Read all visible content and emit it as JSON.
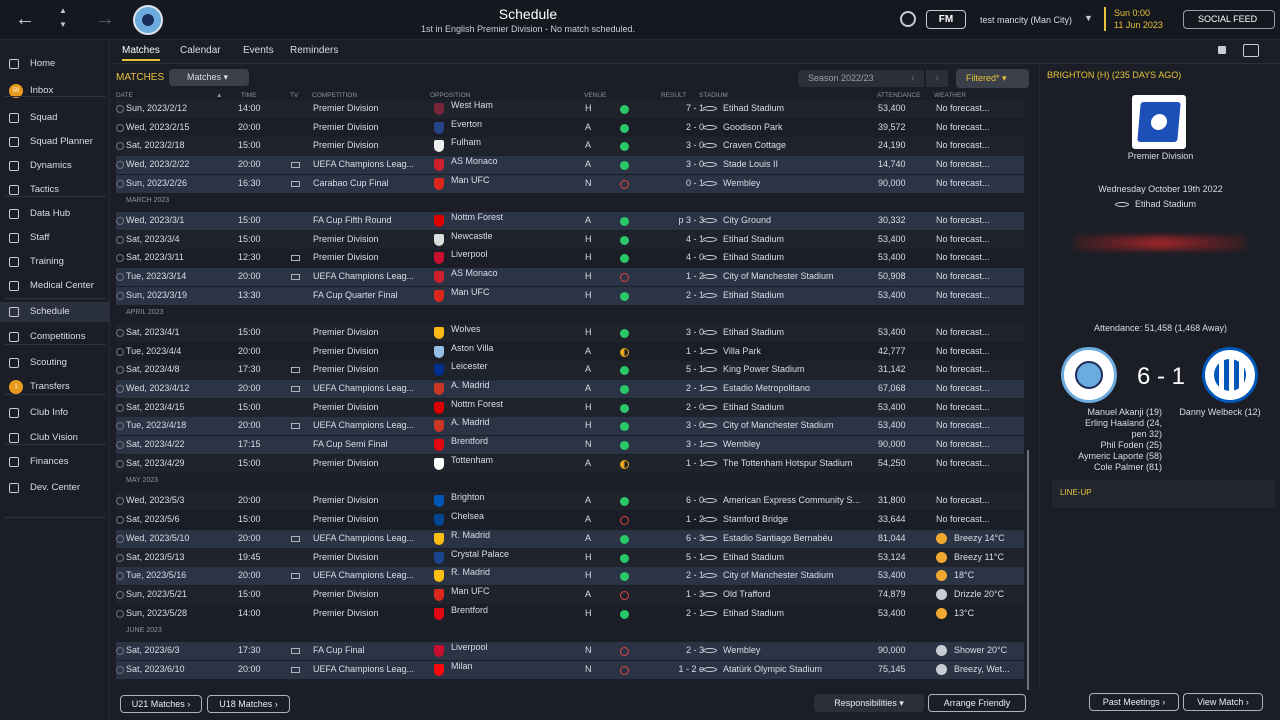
{
  "topbar": {
    "title": "Schedule",
    "subtitle": "1st in English Premier Division - No match scheduled.",
    "fm_label": "FM",
    "manager": "test mancity (Man City)",
    "time": "Sun 0:00",
    "date": "11 Jun 2023",
    "social_feed": "SOCIAL FEED"
  },
  "sidebar": {
    "items": [
      {
        "label": "Home",
        "icon": "home-icon"
      },
      {
        "label": "Inbox",
        "icon": "inbox-icon",
        "badge": "50"
      },
      {
        "label": "Squad",
        "icon": "squad-icon"
      },
      {
        "label": "Squad Planner",
        "icon": "squad-planner-icon"
      },
      {
        "label": "Dynamics",
        "icon": "dynamics-icon"
      },
      {
        "label": "Tactics",
        "icon": "tactics-icon"
      },
      {
        "label": "Data Hub",
        "icon": "data-hub-icon"
      },
      {
        "label": "Staff",
        "icon": "staff-icon"
      },
      {
        "label": "Training",
        "icon": "training-icon"
      },
      {
        "label": "Medical Center",
        "icon": "medical-icon"
      },
      {
        "label": "Schedule",
        "icon": "calendar-icon"
      },
      {
        "label": "Competitions",
        "icon": "trophy-icon"
      },
      {
        "label": "Scouting",
        "icon": "scouting-icon"
      },
      {
        "label": "Transfers",
        "icon": "transfers-icon",
        "badge": "1"
      },
      {
        "label": "Club Info",
        "icon": "club-info-icon"
      },
      {
        "label": "Club Vision",
        "icon": "club-vision-icon"
      },
      {
        "label": "Finances",
        "icon": "finances-icon"
      },
      {
        "label": "Dev. Center",
        "icon": "dev-center-icon"
      }
    ]
  },
  "tabs": [
    "Matches",
    "Calendar",
    "Events",
    "Reminders"
  ],
  "matches_bar": {
    "label": "MATCHES",
    "dropdown": "Matches",
    "season": "Season 2022/23",
    "filter": "Filtered*"
  },
  "columns": [
    "DATE",
    "TIME",
    "TV",
    "COMPETITION",
    "OPPOSITION",
    "VENUE",
    "RESULT",
    "STADIUM",
    "ATTENDANCE",
    "WEATHER"
  ],
  "rows": [
    {
      "type": "match",
      "date": "Sun, 2023/2/12",
      "time": "14:00",
      "tv": false,
      "comp": "Premier Division",
      "opp": "West Ham",
      "badge": "#7a263a",
      "venue": "H",
      "res": "win",
      "result": "7 - 1",
      "stadium": "Etihad Stadium",
      "att": "53,400",
      "wicon": "",
      "weather": "No forecast...",
      "style": "alt"
    },
    {
      "type": "match",
      "date": "Wed, 2023/2/15",
      "time": "20:00",
      "tv": false,
      "comp": "Premier Division",
      "opp": "Everton",
      "badge": "#274488",
      "venue": "A",
      "res": "win",
      "result": "2 - 0",
      "stadium": "Goodison Park",
      "att": "39,572",
      "wicon": "",
      "weather": "No forecast...",
      "style": ""
    },
    {
      "type": "match",
      "date": "Sat, 2023/2/18",
      "time": "15:00",
      "tv": false,
      "comp": "Premier Division",
      "opp": "Fulham",
      "badge": "#f0f0f0",
      "venue": "A",
      "res": "win",
      "result": "3 - 0",
      "stadium": "Craven Cottage",
      "att": "24,190",
      "wicon": "",
      "weather": "No forecast...",
      "style": "alt"
    },
    {
      "type": "match",
      "date": "Wed, 2023/2/22",
      "time": "20:00",
      "tv": true,
      "comp": "UEFA Champions Leag...",
      "opp": "AS Monaco",
      "badge": "#d0202e",
      "venue": "A",
      "res": "win",
      "result": "3 - 0",
      "stadium": "Stade Louis II",
      "att": "14,740",
      "wicon": "",
      "weather": "No forecast...",
      "style": "euro"
    },
    {
      "type": "match",
      "date": "Sun, 2023/2/26",
      "time": "16:30",
      "tv": true,
      "comp": "Carabao Cup Final",
      "opp": "Man UFC",
      "badge": "#da291c",
      "venue": "N",
      "res": "loss",
      "result": "0 - 1",
      "stadium": "Wembley",
      "att": "90,000",
      "wicon": "",
      "weather": "No forecast...",
      "style": "euro"
    },
    {
      "type": "month",
      "label": "MARCH 2023"
    },
    {
      "type": "match",
      "date": "Wed, 2023/3/1",
      "time": "15:00",
      "tv": false,
      "comp": "FA Cup Fifth Round",
      "opp": "Nottm Forest",
      "badge": "#dd0000",
      "venue": "A",
      "res": "win",
      "result": "p 3 - 3",
      "stadium": "City Ground",
      "att": "30,332",
      "wicon": "",
      "weather": "No forecast...",
      "style": "euro"
    },
    {
      "type": "match",
      "date": "Sat, 2023/3/4",
      "time": "15:00",
      "tv": false,
      "comp": "Premier Division",
      "opp": "Newcastle",
      "badge": "#dddddd",
      "venue": "H",
      "res": "win",
      "result": "4 - 1",
      "stadium": "Etihad Stadium",
      "att": "53,400",
      "wicon": "",
      "weather": "No forecast...",
      "style": "alt"
    },
    {
      "type": "match",
      "date": "Sat, 2023/3/11",
      "time": "12:30",
      "tv": true,
      "comp": "Premier Division",
      "opp": "Liverpool",
      "badge": "#c8102e",
      "venue": "H",
      "res": "win",
      "result": "4 - 0",
      "stadium": "Etihad Stadium",
      "att": "53,400",
      "wicon": "",
      "weather": "No forecast...",
      "style": ""
    },
    {
      "type": "match",
      "date": "Tue, 2023/3/14",
      "time": "20:00",
      "tv": true,
      "comp": "UEFA Champions Leag...",
      "opp": "AS Monaco",
      "badge": "#d0202e",
      "venue": "H",
      "res": "loss",
      "result": "1 - 2",
      "stadium": "City of Manchester Stadium",
      "att": "50,908",
      "wicon": "",
      "weather": "No forecast...",
      "style": "euro"
    },
    {
      "type": "match",
      "date": "Sun, 2023/3/19",
      "time": "13:30",
      "tv": false,
      "comp": "FA Cup Quarter Final",
      "opp": "Man UFC",
      "badge": "#da291c",
      "venue": "H",
      "res": "win",
      "result": "2 - 1",
      "stadium": "Etihad Stadium",
      "att": "53,400",
      "wicon": "",
      "weather": "No forecast...",
      "style": "euro"
    },
    {
      "type": "month",
      "label": "APRIL 2023"
    },
    {
      "type": "match",
      "date": "Sat, 2023/4/1",
      "time": "15:00",
      "tv": false,
      "comp": "Premier Division",
      "opp": "Wolves",
      "badge": "#fdb913",
      "venue": "H",
      "res": "win",
      "result": "3 - 0",
      "stadium": "Etihad Stadium",
      "att": "53,400",
      "wicon": "",
      "weather": "No forecast...",
      "style": "alt"
    },
    {
      "type": "match",
      "date": "Tue, 2023/4/4",
      "time": "20:00",
      "tv": false,
      "comp": "Premier Division",
      "opp": "Aston Villa",
      "badge": "#95bfe5",
      "venue": "A",
      "res": "draw",
      "result": "1 - 1",
      "stadium": "Villa Park",
      "att": "42,777",
      "wicon": "",
      "weather": "No forecast...",
      "style": ""
    },
    {
      "type": "match",
      "date": "Sat, 2023/4/8",
      "time": "17:30",
      "tv": true,
      "comp": "Premier Division",
      "opp": "Leicester",
      "badge": "#003090",
      "venue": "A",
      "res": "win",
      "result": "5 - 1",
      "stadium": "King Power Stadium",
      "att": "31,142",
      "wicon": "",
      "weather": "No forecast...",
      "style": "alt"
    },
    {
      "type": "match",
      "date": "Wed, 2023/4/12",
      "time": "20:00",
      "tv": true,
      "comp": "UEFA Champions Leag...",
      "opp": "A. Madrid",
      "badge": "#cb3524",
      "venue": "A",
      "res": "win",
      "result": "2 - 1",
      "stadium": "Estadio Metropolitano",
      "att": "67,068",
      "wicon": "",
      "weather": "No forecast...",
      "style": "euro"
    },
    {
      "type": "match",
      "date": "Sat, 2023/4/15",
      "time": "15:00",
      "tv": false,
      "comp": "Premier Division",
      "opp": "Nottm Forest",
      "badge": "#dd0000",
      "venue": "H",
      "res": "win",
      "result": "2 - 0",
      "stadium": "Etihad Stadium",
      "att": "53,400",
      "wicon": "",
      "weather": "No forecast...",
      "style": "alt"
    },
    {
      "type": "match",
      "date": "Tue, 2023/4/18",
      "time": "20:00",
      "tv": true,
      "comp": "UEFA Champions Leag...",
      "opp": "A. Madrid",
      "badge": "#cb3524",
      "venue": "H",
      "res": "win",
      "result": "3 - 0",
      "stadium": "City of Manchester Stadium",
      "att": "53,400",
      "wicon": "",
      "weather": "No forecast...",
      "style": "euro"
    },
    {
      "type": "match",
      "date": "Sat, 2023/4/22",
      "time": "17:15",
      "tv": false,
      "comp": "FA Cup Semi Final",
      "opp": "Brentford",
      "badge": "#e30613",
      "venue": "N",
      "res": "win",
      "result": "3 - 1",
      "stadium": "Wembley",
      "att": "90,000",
      "wicon": "",
      "weather": "No forecast...",
      "style": "euro"
    },
    {
      "type": "match",
      "date": "Sat, 2023/4/29",
      "time": "15:00",
      "tv": false,
      "comp": "Premier Division",
      "opp": "Tottenham",
      "badge": "#ffffff",
      "venue": "A",
      "res": "draw",
      "result": "1 - 1",
      "stadium": "The Tottenham Hotspur Stadium",
      "att": "54,250",
      "wicon": "",
      "weather": "No forecast...",
      "style": "alt"
    },
    {
      "type": "month",
      "label": "MAY 2023"
    },
    {
      "type": "match",
      "date": "Wed, 2023/5/3",
      "time": "20:00",
      "tv": false,
      "comp": "Premier Division",
      "opp": "Brighton",
      "badge": "#0057b8",
      "venue": "A",
      "res": "win",
      "result": "6 - 0",
      "stadium": "American Express Community S...",
      "att": "31,800",
      "wicon": "",
      "weather": "No forecast...",
      "style": "alt"
    },
    {
      "type": "match",
      "date": "Sat, 2023/5/6",
      "time": "15:00",
      "tv": false,
      "comp": "Premier Division",
      "opp": "Chelsea",
      "badge": "#034694",
      "venue": "A",
      "res": "loss",
      "result": "1 - 2",
      "stadium": "Stamford Bridge",
      "att": "33,644",
      "wicon": "",
      "weather": "No forecast...",
      "style": ""
    },
    {
      "type": "match",
      "date": "Wed, 2023/5/10",
      "time": "20:00",
      "tv": true,
      "comp": "UEFA Champions Leag...",
      "opp": "R. Madrid",
      "badge": "#febe10",
      "venue": "A",
      "res": "win",
      "result": "6 - 3",
      "stadium": "Estadio Santiago Bernabéu",
      "att": "81,044",
      "wicon": "sun",
      "weather": "Breezy 14°C",
      "style": "euro"
    },
    {
      "type": "match",
      "date": "Sat, 2023/5/13",
      "time": "19:45",
      "tv": false,
      "comp": "Premier Division",
      "opp": "Crystal Palace",
      "badge": "#1b458f",
      "venue": "H",
      "res": "win",
      "result": "5 - 1",
      "stadium": "Etihad Stadium",
      "att": "53,124",
      "wicon": "sun",
      "weather": "Breezy 11°C",
      "style": "alt"
    },
    {
      "type": "match",
      "date": "Tue, 2023/5/16",
      "time": "20:00",
      "tv": true,
      "comp": "UEFA Champions Leag...",
      "opp": "R. Madrid",
      "badge": "#febe10",
      "venue": "H",
      "res": "win",
      "result": "2 - 1",
      "stadium": "City of Manchester Stadium",
      "att": "53,400",
      "wicon": "sun",
      "weather": "18°C",
      "style": "euro"
    },
    {
      "type": "match",
      "date": "Sun, 2023/5/21",
      "time": "15:00",
      "tv": false,
      "comp": "Premier Division",
      "opp": "Man UFC",
      "badge": "#da291c",
      "venue": "A",
      "res": "loss",
      "result": "1 - 3",
      "stadium": "Old Trafford",
      "att": "74,879",
      "wicon": "rain",
      "weather": "Drizzle 20°C",
      "style": "alt"
    },
    {
      "type": "match",
      "date": "Sun, 2023/5/28",
      "time": "14:00",
      "tv": false,
      "comp": "Premier Division",
      "opp": "Brentford",
      "badge": "#e30613",
      "venue": "H",
      "res": "win",
      "result": "2 - 1",
      "stadium": "Etihad Stadium",
      "att": "53,400",
      "wicon": "sun",
      "weather": "13°C",
      "style": ""
    },
    {
      "type": "month",
      "label": "JUNE 2023"
    },
    {
      "type": "match",
      "date": "Sat, 2023/6/3",
      "time": "17:30",
      "tv": true,
      "comp": "FA Cup Final",
      "opp": "Liverpool",
      "badge": "#c8102e",
      "venue": "N",
      "res": "loss",
      "result": "2 - 3",
      "stadium": "Wembley",
      "att": "90,000",
      "wicon": "rain",
      "weather": "Shower 20°C",
      "style": "euro"
    },
    {
      "type": "match",
      "date": "Sat, 2023/6/10",
      "time": "20:00",
      "tv": true,
      "comp": "UEFA Champions Leag...",
      "opp": "Milan",
      "badge": "#fb090b",
      "venue": "N",
      "res": "loss",
      "result": "1 - 2 e",
      "stadium": "Atatürk Olympic Stadium",
      "att": "75,145",
      "wicon": "rain",
      "weather": "Breezy, Wet...",
      "style": "euro"
    }
  ],
  "bottom": {
    "u21": "U21 Matches",
    "u18": "U18 Matches",
    "responsibilities": "Responsibilities",
    "arrange": "Arrange Friendly",
    "past_meetings": "Past Meetings",
    "view_match": "View Match"
  },
  "panel": {
    "title": "BRIGHTON (H) (235 DAYS AGO)",
    "competition": "Premier Division",
    "date": "Wednesday October 19th 2022",
    "venue": "Etihad Stadium",
    "attendance": "Attendance: 51,458 (1,468 Away)",
    "score": "6 - 1",
    "home_scorers": [
      "Manuel Akanji (19)",
      "Erling Haaland (24,",
      "pen 32)",
      "Phil Foden (25)",
      "Aymeric Laporte (58)",
      "Cole Palmer (81)"
    ],
    "away_scorers": [
      "Danny Welbeck (12)"
    ],
    "lineup": "LINE-UP"
  },
  "colors": {
    "accent": "#e8c33a",
    "win": "#29c96a",
    "loss": "#e04545",
    "draw": "#e8a51c",
    "euro_row": "#2b3445"
  }
}
